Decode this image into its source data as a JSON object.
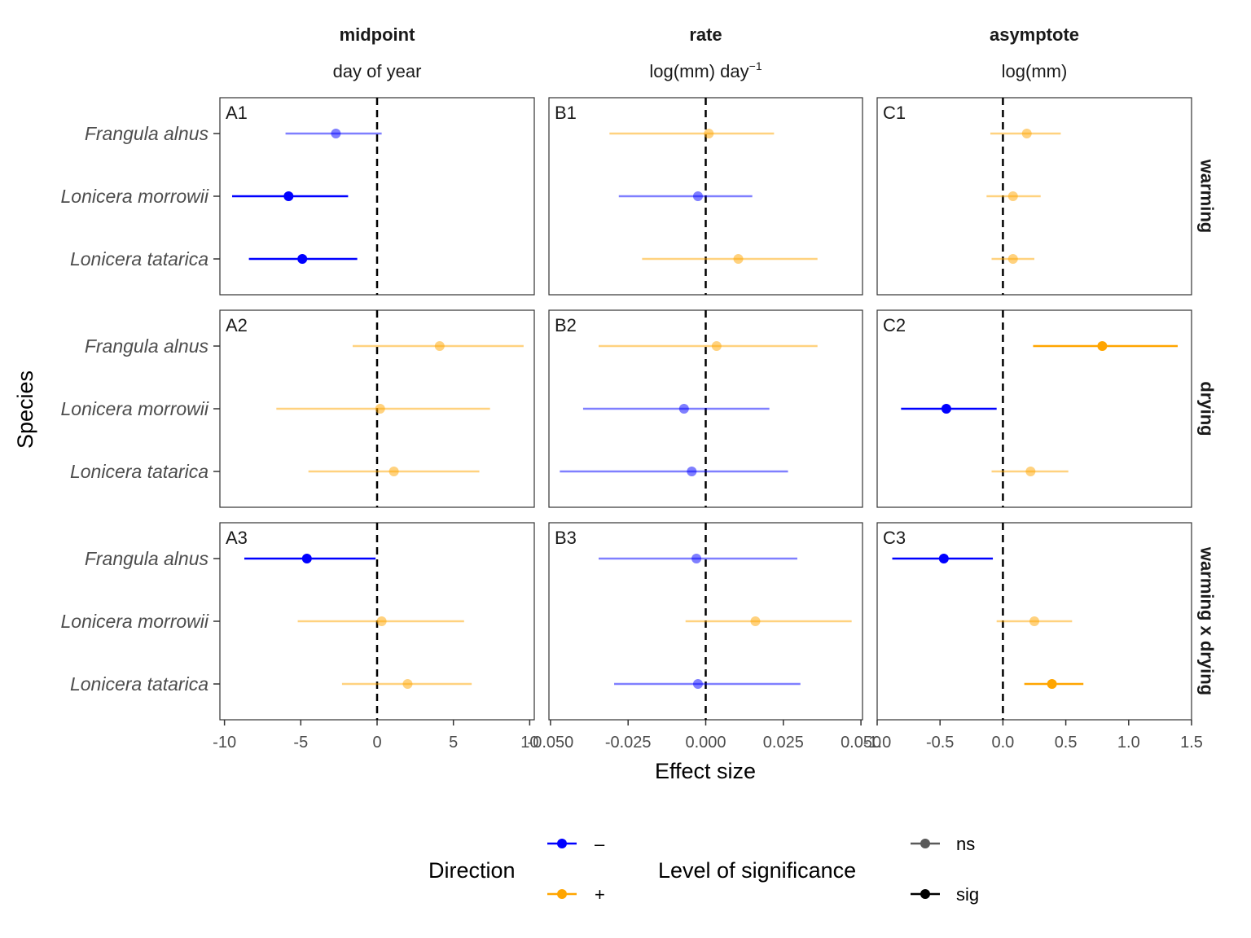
{
  "chart_data": {
    "type": "forest-plot",
    "xlabel": "Effect size",
    "ylabel": "Species",
    "species": [
      "Frangula alnus",
      "Lonicera morrowii",
      "Lonicera tatarica"
    ],
    "columns": [
      {
        "id": "A",
        "title": "midpoint",
        "subtitle_text": "day of year",
        "subtitle_main": "",
        "subtitle_sup": "",
        "xlim": [
          -10.3,
          10.3
        ],
        "ticks": [
          -10,
          -5,
          0,
          5,
          10
        ],
        "tick_labels": [
          "-10",
          "-5",
          "0",
          "5",
          "10"
        ]
      },
      {
        "id": "B",
        "title": "rate",
        "subtitle_text": "",
        "subtitle_main": "log(mm) day",
        "subtitle_sup": "−1",
        "xlim": [
          -0.0505,
          0.0505
        ],
        "ticks": [
          -0.05,
          -0.025,
          0,
          0.025,
          0.05
        ],
        "tick_labels": [
          "-0.050",
          "-0.025",
          "0.000",
          "0.025",
          "0.050"
        ]
      },
      {
        "id": "C",
        "title": "asymptote",
        "subtitle_text": "log(mm)",
        "subtitle_main": "",
        "subtitle_sup": "",
        "xlim": [
          -1.0,
          1.5
        ],
        "ticks": [
          -1.0,
          -0.5,
          0,
          0.5,
          1.0,
          1.5
        ],
        "tick_labels": [
          "-1.0",
          "-0.5",
          "0.0",
          "0.5",
          "1.0",
          "1.5"
        ]
      }
    ],
    "rows": [
      {
        "id": "1",
        "strip": "warming"
      },
      {
        "id": "2",
        "strip": "drying"
      },
      {
        "id": "3",
        "strip": "warming x drying"
      }
    ],
    "panels": [
      {
        "label": "A1",
        "col": 0,
        "row": 0,
        "points": [
          {
            "species": "Frangula alnus",
            "est": -2.7,
            "lo": -6.0,
            "hi": 0.3,
            "direction": "-",
            "sig": false
          },
          {
            "species": "Lonicera morrowii",
            "est": -5.8,
            "lo": -9.5,
            "hi": -1.9,
            "direction": "-",
            "sig": true
          },
          {
            "species": "Lonicera tatarica",
            "est": -4.9,
            "lo": -8.4,
            "hi": -1.3,
            "direction": "-",
            "sig": true
          }
        ]
      },
      {
        "label": "B1",
        "col": 1,
        "row": 0,
        "points": [
          {
            "species": "Frangula alnus",
            "est": 0.001,
            "lo": -0.031,
            "hi": 0.022,
            "direction": "+",
            "sig": false
          },
          {
            "species": "Lonicera morrowii",
            "est": -0.0025,
            "lo": -0.028,
            "hi": 0.015,
            "direction": "-",
            "sig": false
          },
          {
            "species": "Lonicera tatarica",
            "est": 0.0105,
            "lo": -0.0205,
            "hi": 0.036,
            "direction": "+",
            "sig": false
          }
        ]
      },
      {
        "label": "C1",
        "col": 2,
        "row": 0,
        "points": [
          {
            "species": "Frangula alnus",
            "est": 0.19,
            "lo": -0.1,
            "hi": 0.46,
            "direction": "+",
            "sig": false
          },
          {
            "species": "Lonicera morrowii",
            "est": 0.08,
            "lo": -0.13,
            "hi": 0.3,
            "direction": "+",
            "sig": false
          },
          {
            "species": "Lonicera tatarica",
            "est": 0.08,
            "lo": -0.09,
            "hi": 0.25,
            "direction": "+",
            "sig": false
          }
        ]
      },
      {
        "label": "A2",
        "col": 0,
        "row": 1,
        "points": [
          {
            "species": "Frangula alnus",
            "est": 4.1,
            "lo": -1.6,
            "hi": 9.6,
            "direction": "+",
            "sig": false
          },
          {
            "species": "Lonicera morrowii",
            "est": 0.2,
            "lo": -6.6,
            "hi": 7.4,
            "direction": "+",
            "sig": false
          },
          {
            "species": "Lonicera tatarica",
            "est": 1.1,
            "lo": -4.5,
            "hi": 6.7,
            "direction": "+",
            "sig": false
          }
        ]
      },
      {
        "label": "B2",
        "col": 1,
        "row": 1,
        "points": [
          {
            "species": "Frangula alnus",
            "est": 0.0035,
            "lo": -0.0345,
            "hi": 0.036,
            "direction": "+",
            "sig": false
          },
          {
            "species": "Lonicera morrowii",
            "est": -0.007,
            "lo": -0.0395,
            "hi": 0.0205,
            "direction": "-",
            "sig": false
          },
          {
            "species": "Lonicera tatarica",
            "est": -0.0045,
            "lo": -0.047,
            "hi": 0.0265,
            "direction": "-",
            "sig": false
          }
        ]
      },
      {
        "label": "C2",
        "col": 2,
        "row": 1,
        "points": [
          {
            "species": "Frangula alnus",
            "est": 0.79,
            "lo": 0.24,
            "hi": 1.39,
            "direction": "+",
            "sig": true
          },
          {
            "species": "Lonicera morrowii",
            "est": -0.45,
            "lo": -0.81,
            "hi": -0.05,
            "direction": "-",
            "sig": true
          },
          {
            "species": "Lonicera tatarica",
            "est": 0.22,
            "lo": -0.09,
            "hi": 0.52,
            "direction": "+",
            "sig": false
          }
        ]
      },
      {
        "label": "A3",
        "col": 0,
        "row": 2,
        "points": [
          {
            "species": "Frangula alnus",
            "est": -4.6,
            "lo": -8.7,
            "hi": -0.1,
            "direction": "-",
            "sig": true
          },
          {
            "species": "Lonicera morrowii",
            "est": 0.3,
            "lo": -5.2,
            "hi": 5.7,
            "direction": "+",
            "sig": false
          },
          {
            "species": "Lonicera tatarica",
            "est": 2.0,
            "lo": -2.3,
            "hi": 6.2,
            "direction": "+",
            "sig": false
          }
        ]
      },
      {
        "label": "B3",
        "col": 1,
        "row": 2,
        "points": [
          {
            "species": "Frangula alnus",
            "est": -0.003,
            "lo": -0.0345,
            "hi": 0.0295,
            "direction": "-",
            "sig": false
          },
          {
            "species": "Lonicera morrowii",
            "est": 0.016,
            "lo": -0.0065,
            "hi": 0.047,
            "direction": "+",
            "sig": false
          },
          {
            "species": "Lonicera tatarica",
            "est": -0.0025,
            "lo": -0.0295,
            "hi": 0.0305,
            "direction": "-",
            "sig": false
          }
        ]
      },
      {
        "label": "C3",
        "col": 2,
        "row": 2,
        "points": [
          {
            "species": "Frangula alnus",
            "est": -0.47,
            "lo": -0.88,
            "hi": -0.08,
            "direction": "-",
            "sig": true
          },
          {
            "species": "Lonicera morrowii",
            "est": 0.25,
            "lo": -0.05,
            "hi": 0.55,
            "direction": "+",
            "sig": false
          },
          {
            "species": "Lonicera tatarica",
            "est": 0.39,
            "lo": 0.17,
            "hi": 0.64,
            "direction": "+",
            "sig": true
          }
        ]
      }
    ],
    "reference_line": 0,
    "colors": {
      "negative": "#0000ff",
      "positive": "#ffa500",
      "ns_legend": "#595959",
      "sig_legend": "#000000"
    },
    "ns_alpha": 0.5,
    "legend": {
      "position": "bottom",
      "direction_title": "Direction",
      "direction_items": [
        {
          "label": "–",
          "key": "-"
        },
        {
          "label": "+",
          "key": "+"
        }
      ],
      "significance_title": "Level of significance",
      "significance_items": [
        {
          "label": "ns",
          "key": "ns"
        },
        {
          "label": "sig",
          "key": "sig"
        }
      ]
    },
    "grid": false
  }
}
